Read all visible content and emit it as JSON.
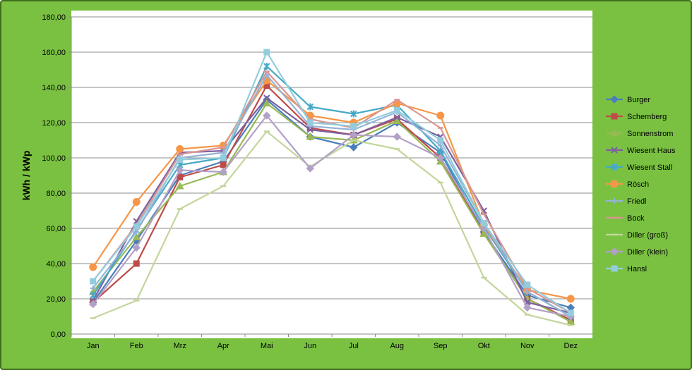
{
  "chart_data": {
    "type": "line",
    "title": "",
    "xlabel": "",
    "ylabel": "kWh / kWp",
    "ylim": [
      0,
      180
    ],
    "ytick_step": 20,
    "ytick_labels": [
      "0,00",
      "20,00",
      "40,00",
      "60,00",
      "80,00",
      "100,00",
      "120,00",
      "140,00",
      "160,00",
      "180,00"
    ],
    "grid": true,
    "legend_position": "right",
    "categories": [
      "Jan",
      "Feb",
      "Mrz",
      "Apr",
      "Mai",
      "Jun",
      "Jul",
      "Aug",
      "Sep",
      "Okt",
      "Nov",
      "Dez"
    ],
    "series": [
      {
        "name": "Burger",
        "color": "#4a7ebb",
        "marker": "diamond",
        "values": [
          18,
          53,
          90,
          98,
          133,
          112,
          106,
          120,
          103,
          58,
          22,
          15
        ]
      },
      {
        "name": "Schemberg",
        "color": "#be4b48",
        "marker": "square",
        "values": [
          18,
          40,
          89,
          96,
          141,
          117,
          113,
          122,
          100,
          57,
          20,
          8
        ]
      },
      {
        "name": "Sonnenstrom",
        "color": "#98b954",
        "marker": "triangle",
        "values": [
          24,
          55,
          84,
          92,
          131,
          112,
          110,
          121,
          98,
          57,
          20,
          7
        ]
      },
      {
        "name": "Wiesent Haus",
        "color": "#7d60a0",
        "marker": "x",
        "values": [
          19,
          64,
          103,
          104,
          134,
          116,
          113,
          123,
          112,
          70,
          18,
          12
        ]
      },
      {
        "name": "Wiesent Stall",
        "color": "#46aac5",
        "marker": "star",
        "values": [
          22,
          59,
          96,
          100,
          152,
          129,
          125,
          130,
          104,
          61,
          24,
          10
        ]
      },
      {
        "name": "Rösch",
        "color": "#f79646",
        "marker": "circle",
        "values": [
          38,
          75,
          105,
          107,
          144,
          124,
          120,
          131,
          124,
          62,
          25,
          20
        ]
      },
      {
        "name": "Friedl",
        "color": "#95b3d7",
        "marker": "plus",
        "values": [
          26,
          58,
          100,
          103,
          147,
          118,
          116,
          126,
          107,
          63,
          24,
          10
        ]
      },
      {
        "name": "Bock",
        "color": "#d99694",
        "marker": "dash",
        "values": [
          30,
          62,
          102,
          106,
          149,
          122,
          117,
          133,
          117,
          68,
          26,
          12
        ]
      },
      {
        "name": "Diller (groß)",
        "color": "#c3d69b",
        "marker": "dash",
        "values": [
          9,
          19,
          71,
          84,
          115,
          95,
          110,
          105,
          86,
          32,
          11,
          5
        ]
      },
      {
        "name": "Diller (klein)",
        "color": "#b2a1c7",
        "marker": "diamond",
        "values": [
          17,
          49,
          93,
          92,
          124,
          94,
          113,
          112,
          100,
          60,
          15,
          10
        ]
      },
      {
        "name": "Hansl",
        "color": "#93cddd",
        "marker": "square",
        "values": [
          30,
          61,
          99,
          100,
          160,
          120,
          118,
          127,
          110,
          63,
          28,
          12
        ]
      }
    ]
  }
}
